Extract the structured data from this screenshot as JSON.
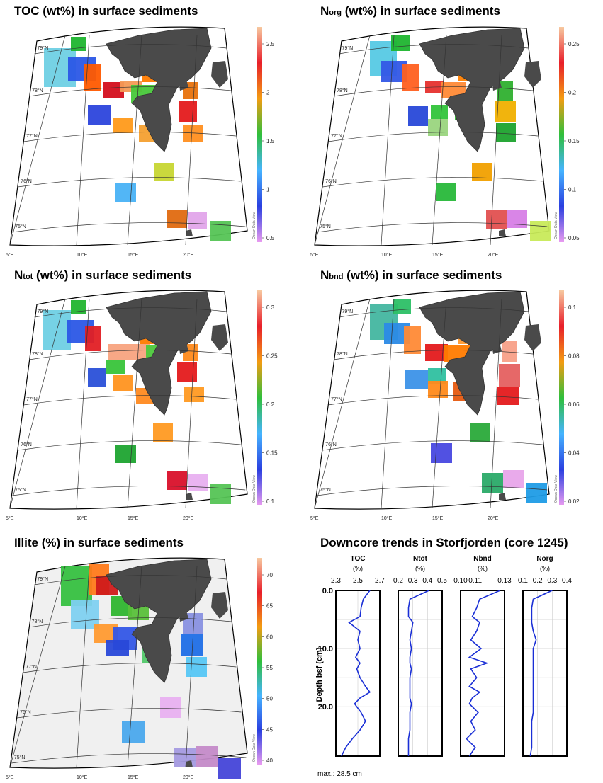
{
  "maps": [
    {
      "id": "toc",
      "title_main": "TOC (wt%) in surface sediments",
      "title_sub": "",
      "title_rest": "",
      "cb_ticks": [
        "2.5",
        "2",
        "1.5",
        "1",
        "0.5"
      ],
      "lat_labels": [
        "79°N",
        "78°N",
        "77°N",
        "76°N",
        "75°N"
      ],
      "lon_labels": [
        "5°E",
        "10°E",
        "15°E",
        "20°E"
      ],
      "watermark": "Ocean Data View"
    },
    {
      "id": "norg",
      "title_main": "N",
      "title_sub": "org",
      "title_rest": " (wt%) in surface sediments",
      "cb_ticks": [
        "0.25",
        "0.2",
        "0.15",
        "0.1",
        "0.05"
      ],
      "lat_labels": [
        "79°N",
        "78°N",
        "77°N",
        "76°N",
        "75°N"
      ],
      "lon_labels": [
        "5°E",
        "10°E",
        "15°E",
        "20°E"
      ],
      "watermark": "Ocean Data View"
    },
    {
      "id": "ntot",
      "title_main": "N",
      "title_sub": "tot",
      "title_rest": " (wt%) in surface sediments",
      "cb_ticks": [
        "0.3",
        "0.25",
        "0.2",
        "0.15",
        "0.1"
      ],
      "lat_labels": [
        "79°N",
        "78°N",
        "77°N",
        "76°N",
        "75°N"
      ],
      "lon_labels": [
        "5°E",
        "10°E",
        "15°E",
        "20°E"
      ],
      "watermark": "Ocean Data View"
    },
    {
      "id": "nbnd",
      "title_main": "N",
      "title_sub": "bnd",
      "title_rest": " (wt%) in surface sediments",
      "cb_ticks": [
        "0.1",
        "0.08",
        "0.06",
        "0.04",
        "0.02"
      ],
      "lat_labels": [
        "79°N",
        "78°N",
        "77°N",
        "76°N",
        "75°N"
      ],
      "lon_labels": [
        "5°E",
        "10°E",
        "15°E",
        "20°E"
      ],
      "watermark": "Ocean Data View"
    },
    {
      "id": "illite",
      "title_main": "Illite (%) in surface sediments",
      "title_sub": "",
      "title_rest": "",
      "cb_ticks": [
        "70",
        "65",
        "60",
        "55",
        "50",
        "45",
        "40"
      ],
      "lat_labels": [
        "79°N",
        "78°N",
        "77°N",
        "76°N",
        "75°N"
      ],
      "lon_labels": [
        "5°E",
        "10°E",
        "15°E",
        "20°E"
      ],
      "watermark": "Ocean Data View"
    }
  ],
  "downcore": {
    "title": "Downcore trends in Storfjorden (core 1245)",
    "ylabel": "Depth bsf (cm)",
    "yticks": [
      "0.0",
      "10.0",
      "20.0"
    ],
    "footnote": "max.: 28.5 cm",
    "line_color": "#1a2fd6",
    "depths": [
      0,
      1.5,
      3,
      4.5,
      5.5,
      7,
      8.5,
      10,
      11.5,
      12.5,
      13.5,
      15,
      16.5,
      17.5,
      18.5,
      19.5,
      21,
      22.5,
      24,
      25.5,
      27,
      28.5
    ],
    "columns": [
      {
        "name": "TOC",
        "unit": "(%)",
        "ticks": [
          "2.3",
          "2.5",
          "2.7"
        ],
        "xlim": [
          2.3,
          2.7
        ],
        "values": [
          2.61,
          2.55,
          2.53,
          2.52,
          2.42,
          2.52,
          2.5,
          2.52,
          2.48,
          2.52,
          2.49,
          2.52,
          2.57,
          2.61,
          2.52,
          2.47,
          2.53,
          2.57,
          2.52,
          2.45,
          2.39,
          2.35
        ]
      },
      {
        "name": "Ntot",
        "unit": "(%)",
        "ticks": [
          "0.2",
          "0.3",
          "0.4",
          "0.5"
        ],
        "xlim": [
          0.2,
          0.5
        ],
        "values": [
          0.41,
          0.28,
          0.27,
          0.27,
          0.3,
          0.29,
          0.28,
          0.29,
          0.28,
          0.28,
          0.29,
          0.28,
          0.28,
          0.28,
          0.28,
          0.29,
          0.28,
          0.28,
          0.28,
          0.27,
          0.27,
          0.27
        ]
      },
      {
        "name": "Nbnd",
        "unit": "(%)",
        "ticks": [
          "0.10",
          "0.11",
          "0.13"
        ],
        "xlim": [
          0.1,
          0.13
        ],
        "values": [
          0.127,
          0.113,
          0.111,
          0.108,
          0.113,
          0.111,
          0.107,
          0.114,
          0.106,
          0.118,
          0.107,
          0.111,
          0.106,
          0.113,
          0.108,
          0.106,
          0.112,
          0.107,
          0.11,
          0.104,
          0.11,
          0.106
        ]
      },
      {
        "name": "Norg",
        "unit": "(%)",
        "ticks": [
          "0.1",
          "0.2",
          "0.3",
          "0.4"
        ],
        "xlim": [
          0.1,
          0.4
        ],
        "values": [
          0.3,
          0.17,
          0.16,
          0.16,
          0.16,
          0.17,
          0.19,
          0.17,
          0.17,
          0.17,
          0.17,
          0.17,
          0.17,
          0.17,
          0.17,
          0.17,
          0.17,
          0.16,
          0.16,
          0.16,
          0.16,
          0.15
        ]
      }
    ]
  }
}
